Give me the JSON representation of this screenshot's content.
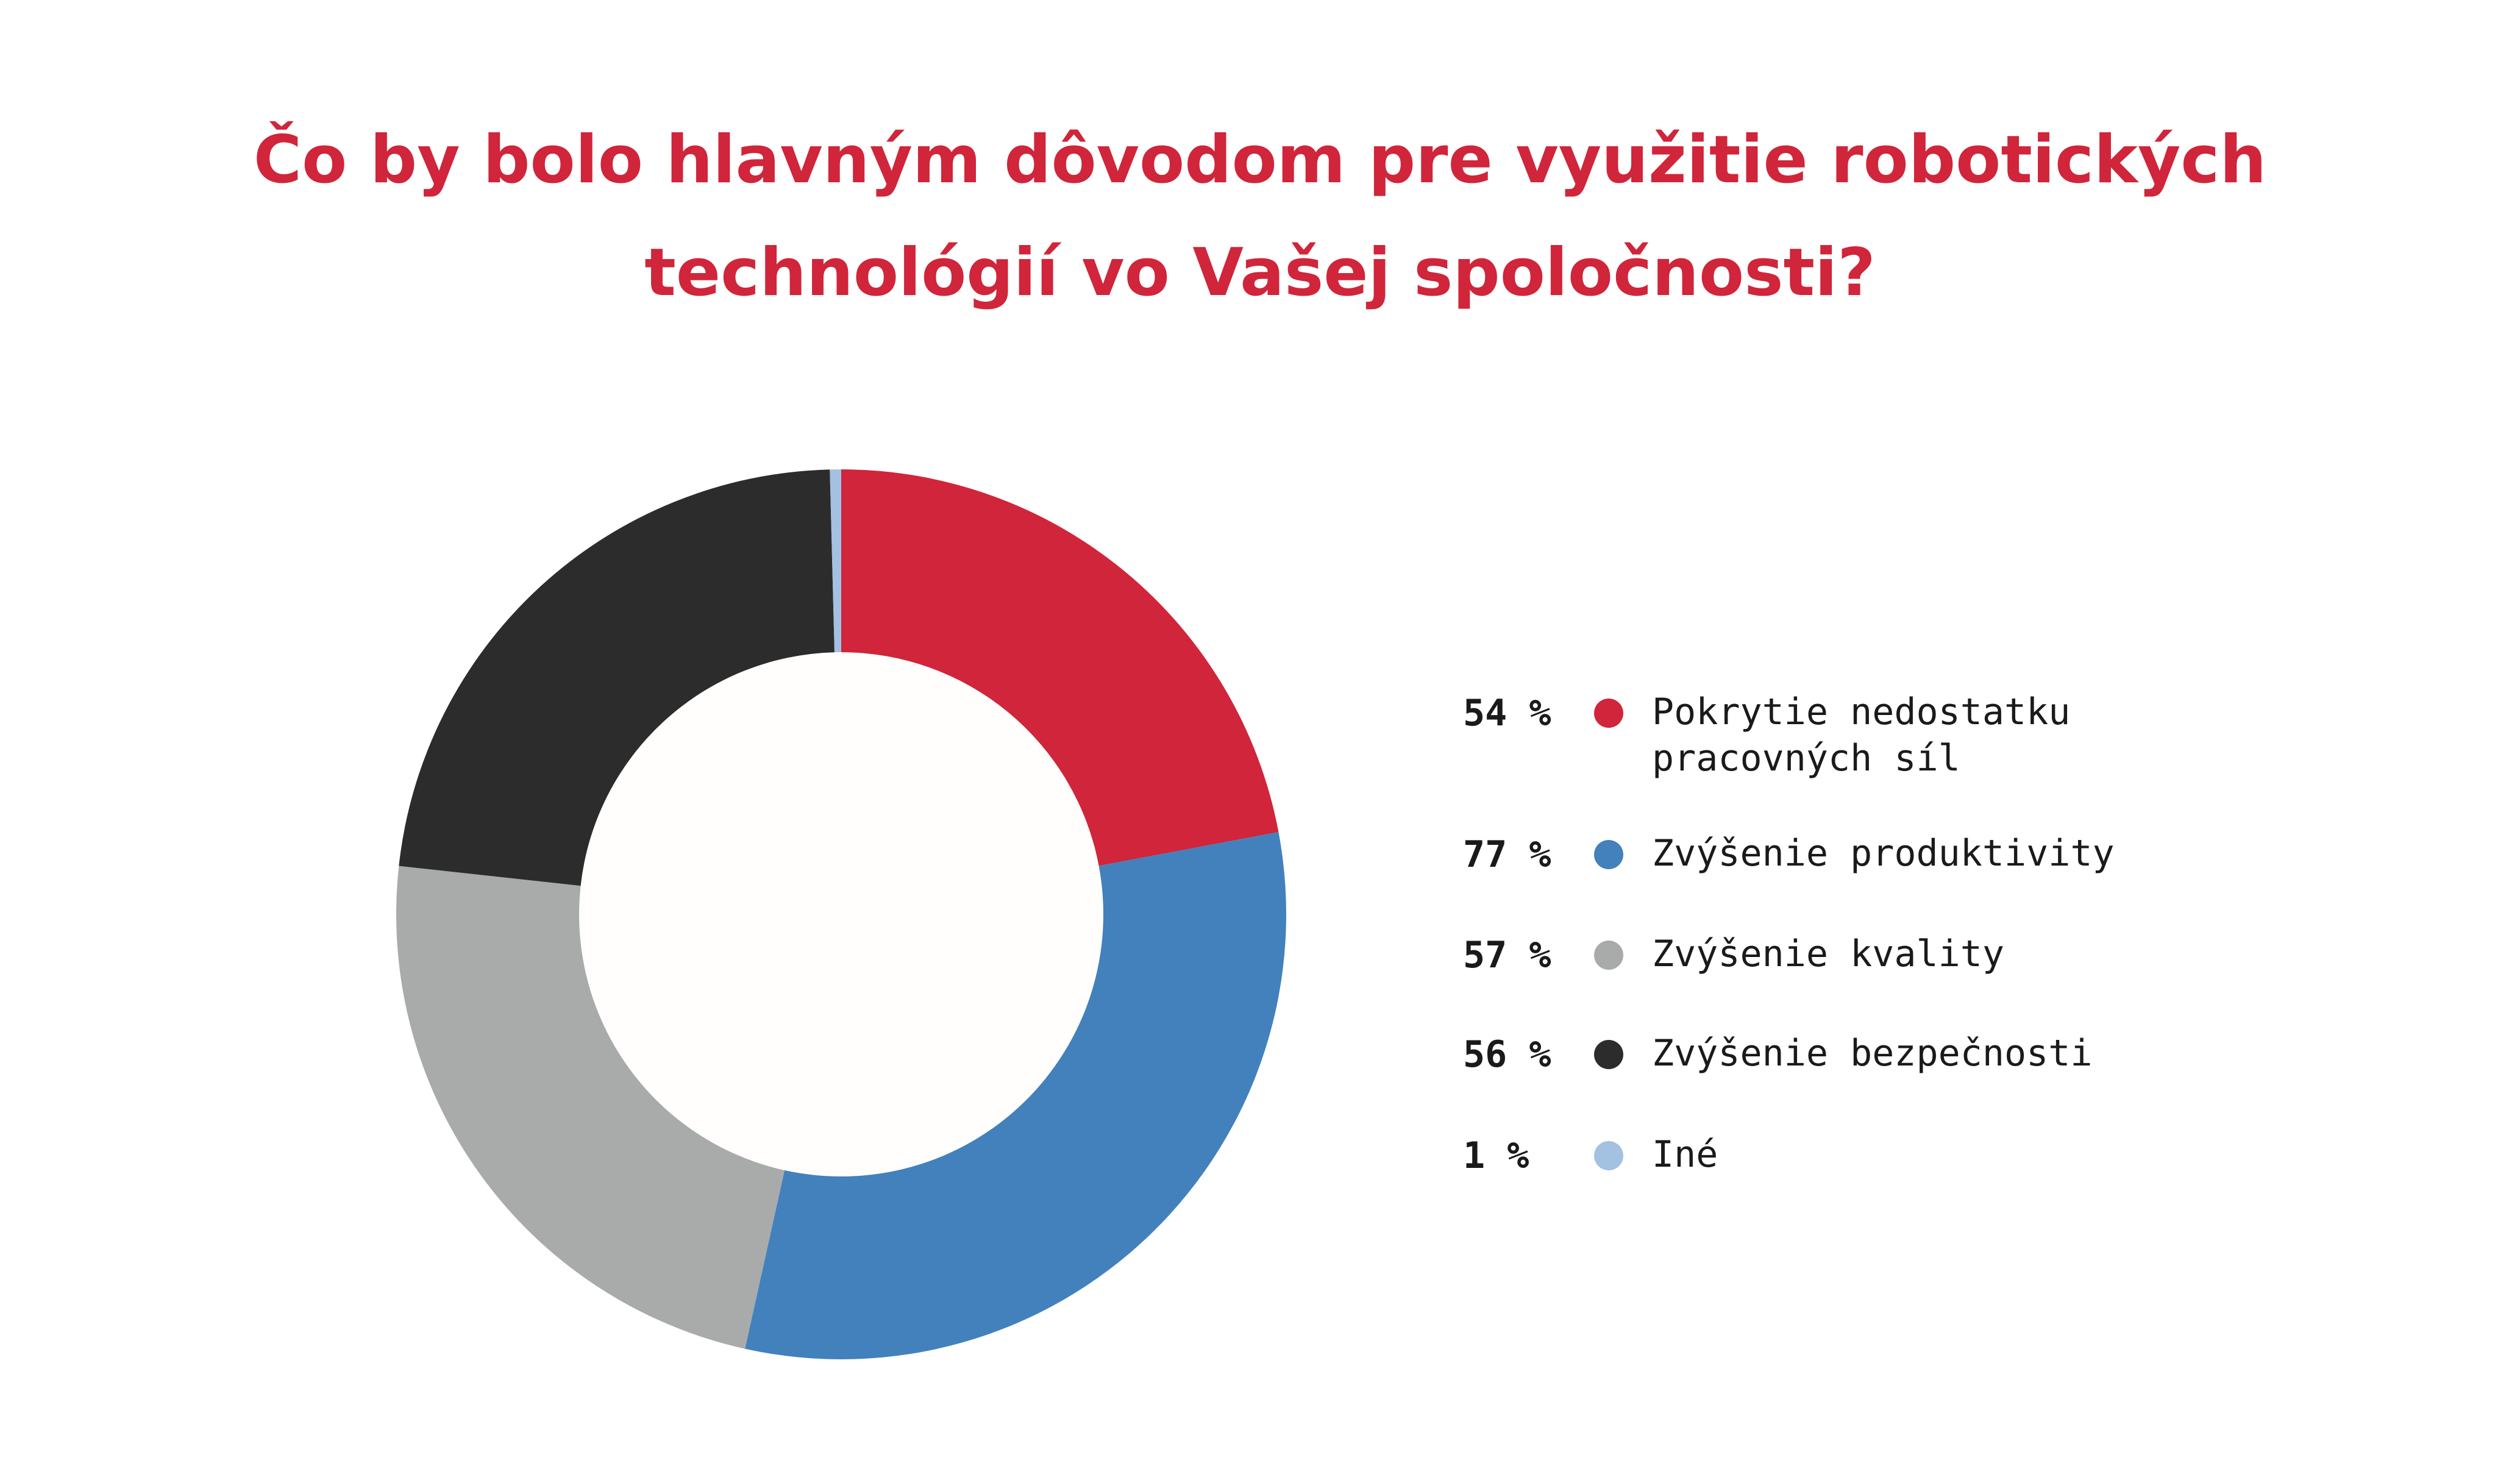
{
  "chart_data": {
    "type": "pie",
    "style": "donut",
    "title_lines": [
      "Čo by bolo hlavným dôvodom pre využitie robotických",
      "technológií vo Vašej spoločnosti?"
    ],
    "series": [
      {
        "label": "Pokrytie nedostatku pracovných síl",
        "label_lines": [
          "Pokrytie nedostatku",
          "pracovných síl"
        ],
        "value": 54,
        "value_label": "54 %",
        "color": "#d0253a"
      },
      {
        "label": "Zvýšenie produktivity",
        "label_lines": [
          "Zvýšenie produktivity"
        ],
        "value": 77,
        "value_label": "77 %",
        "color": "#4281bc"
      },
      {
        "label": "Zvýšenie kvality",
        "label_lines": [
          "Zvýšenie kvality"
        ],
        "value": 57,
        "value_label": "57 %",
        "color": "#a9abab"
      },
      {
        "label": "Zvýšenie bezpečnosti",
        "label_lines": [
          "Zvýšenie bezpečnosti"
        ],
        "value": 56,
        "value_label": "56 %",
        "color": "#2c2c2c"
      },
      {
        "label": "Iné",
        "label_lines": [
          "Iné"
        ],
        "value": 1,
        "value_label": "1 %",
        "color": "#a3c1e1"
      }
    ],
    "legend_position": "right",
    "inner_color": "#fffefc"
  }
}
